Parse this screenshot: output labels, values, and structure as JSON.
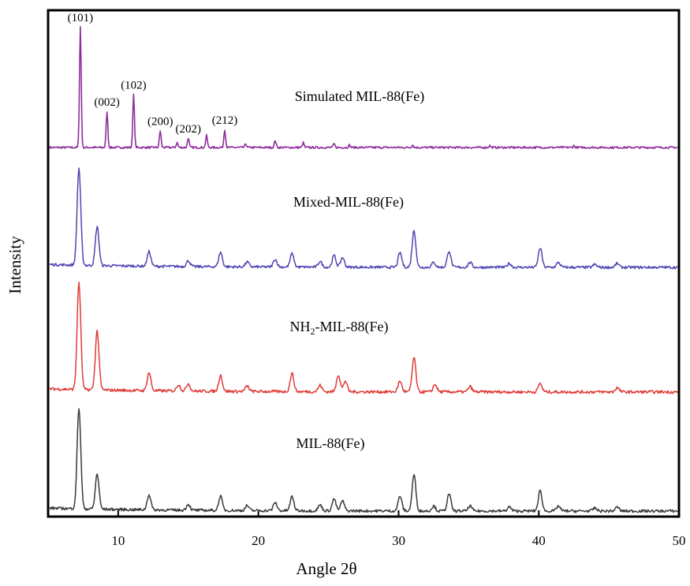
{
  "chart_data": {
    "type": "line",
    "xlabel": "Angle 2θ",
    "ylabel": "Intensity",
    "xlim": [
      5,
      50
    ],
    "xticks": [
      10,
      20,
      30,
      40,
      50
    ],
    "grid": false,
    "series": [
      {
        "name": "Simulated MIL-88(Fe)",
        "color": "#8e2c9c",
        "baseline": 0.03,
        "peaks": [
          [
            7.3,
            1.0
          ],
          [
            9.2,
            0.3
          ],
          [
            11.1,
            0.44
          ],
          [
            13.0,
            0.14
          ],
          [
            14.2,
            0.04
          ],
          [
            15.0,
            0.08
          ],
          [
            16.3,
            0.1
          ],
          [
            17.6,
            0.15
          ],
          [
            19.1,
            0.03
          ],
          [
            21.2,
            0.06
          ],
          [
            23.2,
            0.04
          ],
          [
            25.4,
            0.03
          ],
          [
            26.5,
            0.02
          ],
          [
            31.0,
            0.02
          ],
          [
            36.5,
            0.015
          ],
          [
            42.5,
            0.015
          ]
        ]
      },
      {
        "name": "Mixed-MIL-88(Fe)",
        "color": "#4f46b2",
        "baseline": 0.05,
        "peaks": [
          [
            7.2,
            1.0
          ],
          [
            8.5,
            0.4
          ],
          [
            12.2,
            0.15
          ],
          [
            15.0,
            0.06
          ],
          [
            17.3,
            0.15
          ],
          [
            19.2,
            0.05
          ],
          [
            21.2,
            0.08
          ],
          [
            22.4,
            0.14
          ],
          [
            24.4,
            0.06
          ],
          [
            25.4,
            0.12
          ],
          [
            26.0,
            0.1
          ],
          [
            30.1,
            0.15
          ],
          [
            31.1,
            0.38
          ],
          [
            32.5,
            0.05
          ],
          [
            33.6,
            0.17
          ],
          [
            35.1,
            0.05
          ],
          [
            37.9,
            0.04
          ],
          [
            40.1,
            0.2
          ],
          [
            41.4,
            0.05
          ],
          [
            44.0,
            0.03
          ],
          [
            45.6,
            0.04
          ]
        ]
      },
      {
        "name": "NH₂-MIL-88(Fe)",
        "color": "#df3b37",
        "baseline": 0.05,
        "peaks": [
          [
            7.2,
            1.0
          ],
          [
            8.5,
            0.55
          ],
          [
            12.2,
            0.17
          ],
          [
            14.3,
            0.06
          ],
          [
            15.0,
            0.07
          ],
          [
            17.3,
            0.15
          ],
          [
            19.2,
            0.05
          ],
          [
            22.4,
            0.17
          ],
          [
            24.4,
            0.06
          ],
          [
            25.7,
            0.16
          ],
          [
            26.2,
            0.1
          ],
          [
            30.1,
            0.1
          ],
          [
            31.1,
            0.32
          ],
          [
            32.6,
            0.07
          ],
          [
            35.1,
            0.05
          ],
          [
            40.1,
            0.08
          ],
          [
            45.6,
            0.04
          ]
        ]
      },
      {
        "name": "MIL-88(Fe)",
        "color": "#3a3a3a",
        "baseline": 0.05,
        "peaks": [
          [
            7.2,
            1.0
          ],
          [
            8.5,
            0.35
          ],
          [
            12.2,
            0.15
          ],
          [
            15.0,
            0.06
          ],
          [
            17.3,
            0.14
          ],
          [
            19.2,
            0.05
          ],
          [
            21.2,
            0.08
          ],
          [
            22.4,
            0.14
          ],
          [
            24.4,
            0.06
          ],
          [
            25.4,
            0.12
          ],
          [
            26.0,
            0.1
          ],
          [
            30.1,
            0.15
          ],
          [
            31.1,
            0.36
          ],
          [
            32.5,
            0.05
          ],
          [
            33.6,
            0.17
          ],
          [
            35.1,
            0.05
          ],
          [
            37.9,
            0.04
          ],
          [
            40.1,
            0.2
          ],
          [
            41.4,
            0.05
          ],
          [
            44.0,
            0.03
          ],
          [
            45.6,
            0.04
          ]
        ]
      }
    ],
    "series_labels": [
      {
        "main": "Simulated MIL-88(Fe)"
      },
      {
        "main": "Mixed-MIL-88(Fe)"
      },
      {
        "pre": "NH",
        "sub": "2",
        "post": "-MIL-88(Fe)"
      },
      {
        "main": "MIL-88(Fe)"
      }
    ],
    "annotations": [
      {
        "text": "(101)",
        "x": 7.3
      },
      {
        "text": "(002)",
        "x": 9.2
      },
      {
        "text": "(102)",
        "x": 11.1
      },
      {
        "text": "(200)",
        "x": 13.0
      },
      {
        "text": "(202)",
        "x": 15.0
      },
      {
        "text": "(212)",
        "x": 17.6
      }
    ]
  }
}
